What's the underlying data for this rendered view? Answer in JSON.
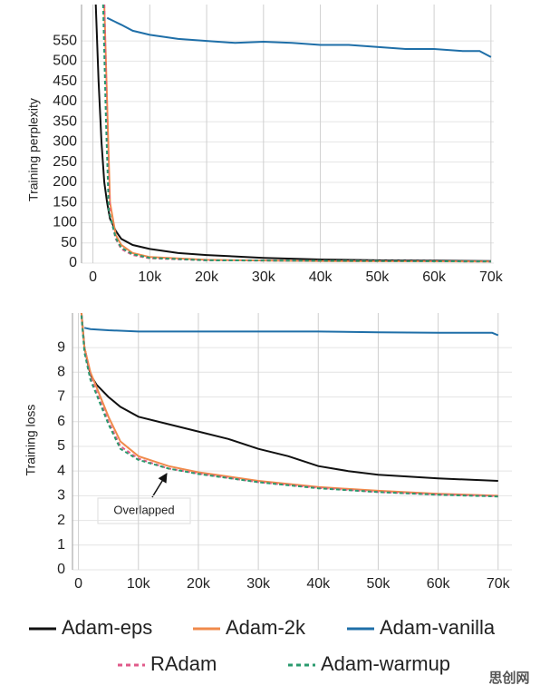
{
  "chart_data": [
    {
      "type": "line",
      "y_label": "Training perplexity",
      "grid": true,
      "xlim": [
        -2000,
        70500
      ],
      "ylim": [
        0,
        640
      ],
      "xticks": [
        0,
        {
          "value": 10000,
          "label": "10k"
        },
        {
          "value": 20000,
          "label": "20k"
        },
        {
          "value": 30000,
          "label": "30k"
        },
        {
          "value": 40000,
          "label": "40k"
        },
        {
          "value": 50000,
          "label": "50k"
        },
        {
          "value": 60000,
          "label": "60k"
        },
        {
          "value": 70000,
          "label": "70k"
        }
      ],
      "yticks": [
        0,
        50,
        100,
        150,
        200,
        250,
        300,
        350,
        400,
        450,
        500,
        550
      ],
      "series": [
        {
          "name": "Adam-eps",
          "color": "#111111",
          "style": "solid",
          "x": [
            500,
            1000,
            1500,
            2000,
            2500,
            3000,
            4000,
            5000,
            7000,
            10000,
            15000,
            20000,
            30000,
            40000,
            50000,
            60000,
            70000
          ],
          "values": [
            640,
            450,
            300,
            200,
            150,
            110,
            80,
            60,
            45,
            35,
            25,
            20,
            13,
            9,
            7,
            6,
            5
          ]
        },
        {
          "name": "Adam-2k",
          "color": "#f08a4b",
          "style": "solid",
          "x": [
            2000,
            2500,
            3000,
            4000,
            5000,
            7000,
            10000,
            20000,
            40000,
            70000
          ],
          "values": [
            640,
            400,
            150,
            70,
            45,
            25,
            15,
            8,
            5,
            4
          ]
        },
        {
          "name": "Adam-vanilla",
          "color": "#1f6fa8",
          "style": "solid",
          "x": [
            2500,
            5000,
            7000,
            10000,
            15000,
            20000,
            25000,
            30000,
            35000,
            40000,
            45000,
            50000,
            55000,
            60000,
            65000,
            68000,
            70000
          ],
          "values": [
            607,
            590,
            575,
            565,
            555,
            550,
            545,
            548,
            545,
            540,
            540,
            535,
            530,
            530,
            525,
            525,
            510
          ]
        },
        {
          "name": "RAdam",
          "color": "#e05a8a",
          "style": "dashed",
          "x": [
            2000,
            2500,
            3000,
            4000,
            5000,
            7000,
            10000,
            20000,
            70000
          ],
          "values": [
            640,
            300,
            120,
            60,
            35,
            20,
            12,
            7,
            4
          ]
        },
        {
          "name": "Adam-warmup",
          "color": "#2a9a6e",
          "style": "dashed",
          "x": [
            1800,
            2300,
            2800,
            4000,
            5000,
            7000,
            10000,
            20000,
            70000
          ],
          "values": [
            640,
            350,
            130,
            62,
            38,
            22,
            13,
            7,
            4
          ]
        }
      ]
    },
    {
      "type": "line",
      "y_label": "Training loss",
      "grid": true,
      "annotation": "Overlapped",
      "xlim": [
        -1000,
        72300
      ],
      "ylim": [
        0,
        10.4
      ],
      "xticks": [
        0,
        {
          "value": 10000,
          "label": "10k"
        },
        {
          "value": 20000,
          "label": "20k"
        },
        {
          "value": 30000,
          "label": "30k"
        },
        {
          "value": 40000,
          "label": "40k"
        },
        {
          "value": 50000,
          "label": "50k"
        },
        {
          "value": 60000,
          "label": "60k"
        },
        {
          "value": 70000,
          "label": "70k"
        }
      ],
      "yticks": [
        0,
        1,
        2,
        3,
        4,
        5,
        6,
        7,
        8,
        9
      ],
      "series": [
        {
          "name": "Adam-eps",
          "color": "#111111",
          "style": "solid",
          "x": [
            500,
            1000,
            2000,
            3000,
            5000,
            7000,
            10000,
            15000,
            20000,
            25000,
            30000,
            35000,
            40000,
            45000,
            50000,
            60000,
            70000
          ],
          "values": [
            10.4,
            9,
            7.9,
            7.5,
            7,
            6.6,
            6.2,
            5.9,
            5.6,
            5.3,
            4.9,
            4.6,
            4.2,
            4,
            3.85,
            3.7,
            3.6
          ]
        },
        {
          "name": "Adam-2k",
          "color": "#f08a4b",
          "style": "solid",
          "x": [
            500,
            1000,
            2000,
            3000,
            5000,
            7000,
            10000,
            15000,
            20000,
            30000,
            40000,
            50000,
            60000,
            70000
          ],
          "values": [
            10.4,
            9,
            8,
            7.4,
            6.2,
            5.2,
            4.6,
            4.2,
            3.95,
            3.6,
            3.35,
            3.2,
            3.08,
            3
          ]
        },
        {
          "name": "Adam-vanilla",
          "color": "#1f6fa8",
          "style": "solid",
          "x": [
            1000,
            2000,
            5000,
            10000,
            20000,
            30000,
            40000,
            50000,
            60000,
            69000,
            70000
          ],
          "values": [
            9.8,
            9.75,
            9.7,
            9.65,
            9.65,
            9.65,
            9.65,
            9.62,
            9.6,
            9.6,
            9.5
          ]
        },
        {
          "name": "RAdam",
          "color": "#e05a8a",
          "style": "dashed",
          "x": [
            500,
            1000,
            2000,
            3000,
            5000,
            7000,
            10000,
            15000,
            20000,
            30000,
            40000,
            50000,
            60000,
            70000
          ],
          "values": [
            10.3,
            8.9,
            7.8,
            7.2,
            6,
            5,
            4.5,
            4.1,
            3.9,
            3.55,
            3.32,
            3.15,
            3.05,
            2.98
          ]
        },
        {
          "name": "Adam-warmup",
          "color": "#2a9a6e",
          "style": "dashed",
          "x": [
            500,
            1000,
            2000,
            3000,
            5000,
            7000,
            10000,
            15000,
            20000,
            30000,
            40000,
            50000,
            60000,
            70000
          ],
          "values": [
            10.3,
            8.8,
            7.7,
            7.1,
            5.9,
            4.9,
            4.45,
            4.1,
            3.88,
            3.55,
            3.3,
            3.15,
            3.04,
            2.97
          ]
        }
      ]
    }
  ],
  "watermark": "思创网"
}
